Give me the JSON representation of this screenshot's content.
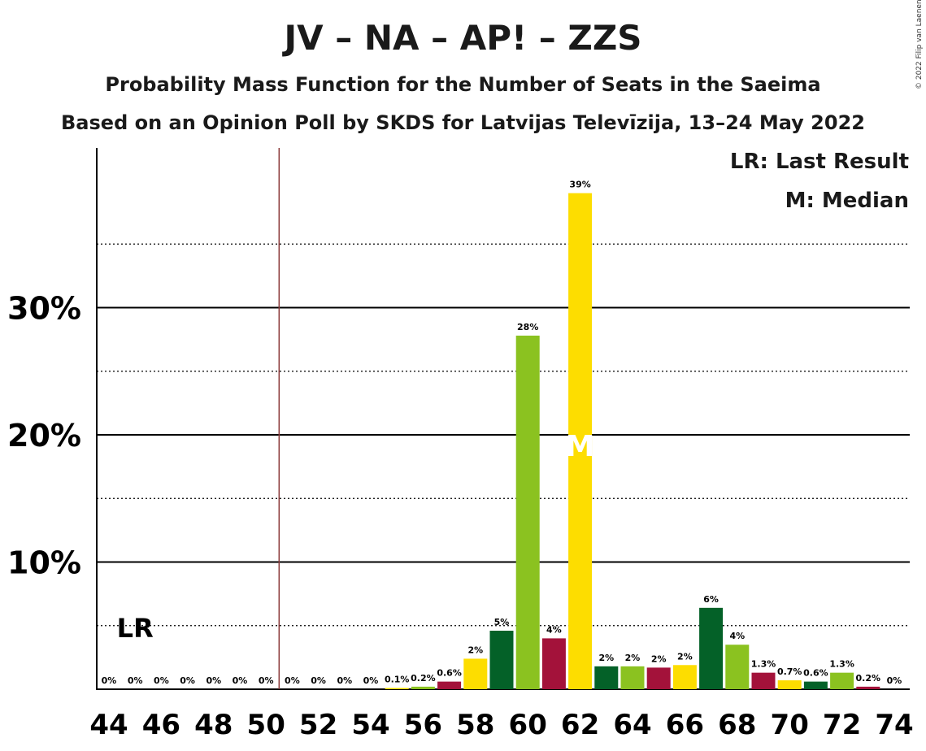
{
  "title": "JV – NA – AP! – ZZS",
  "subtitle": "Probability Mass Function for the Number of Seats in the Saeima",
  "subtitle2": "Based on an Opinion Poll by SKDS for Latvijas Televīzija, 13–24 May 2022",
  "copyright": "© 2022 Filip van Laenen",
  "legend": {
    "lr": "LR: Last Result",
    "median": "M: Median"
  },
  "markers": {
    "lr_label": "LR",
    "median_label": "M"
  },
  "colors": {
    "dark_green": "#046128",
    "light_green": "#8bc220",
    "dark_red": "#a3123a",
    "yellow": "#fddd00",
    "last_result_line": "#8b3a3a"
  },
  "chart_data": {
    "type": "bar",
    "x": [
      44,
      45,
      46,
      47,
      48,
      49,
      50,
      51,
      52,
      53,
      54,
      55,
      56,
      57,
      58,
      59,
      60,
      61,
      62,
      63,
      64,
      65,
      66,
      67,
      68,
      69,
      70,
      71,
      72,
      73,
      74
    ],
    "values": [
      0,
      0,
      0,
      0,
      0,
      0,
      0,
      0,
      0,
      0,
      0,
      0.1,
      0.2,
      0.6,
      2.4,
      4.6,
      27.8,
      4.0,
      39.0,
      1.8,
      1.8,
      1.7,
      1.9,
      6.4,
      3.5,
      1.3,
      0.7,
      0.6,
      1.3,
      0.2,
      0
    ],
    "data_labels": [
      "0%",
      "0%",
      "0%",
      "0%",
      "0%",
      "0%",
      "0%",
      "0%",
      "0%",
      "0%",
      "0%",
      "0.1%",
      "0.2%",
      "0.6%",
      "2%",
      "5%",
      "28%",
      "4%",
      "39%",
      "2%",
      "2%",
      "2%",
      "2%",
      "6%",
      "4%",
      "1.3%",
      "0.7%",
      "0.6%",
      "1.3%",
      "0.2%",
      "0%"
    ],
    "bar_colors": [
      "dark_green",
      "light_green",
      "dark_red",
      "yellow",
      "dark_green",
      "light_green",
      "dark_red",
      "yellow",
      "dark_green",
      "light_green",
      "dark_red",
      "yellow",
      "light_green",
      "dark_red",
      "yellow",
      "dark_green",
      "light_green",
      "dark_red",
      "yellow",
      "dark_green",
      "light_green",
      "dark_red",
      "yellow",
      "dark_green",
      "light_green",
      "dark_red",
      "yellow",
      "dark_green",
      "light_green",
      "dark_red",
      "yellow"
    ],
    "x_tick_labels": [
      "44",
      "46",
      "48",
      "50",
      "52",
      "54",
      "56",
      "58",
      "60",
      "62",
      "64",
      "66",
      "68",
      "70",
      "72",
      "74"
    ],
    "y_tick_labels": [
      "10%",
      "20%",
      "30%"
    ],
    "y_ticks": [
      10,
      20,
      30
    ],
    "ylim": [
      0,
      42
    ],
    "last_result": 50.5,
    "median": 62,
    "grid": "solid at labelled ticks, dotted at halves"
  }
}
